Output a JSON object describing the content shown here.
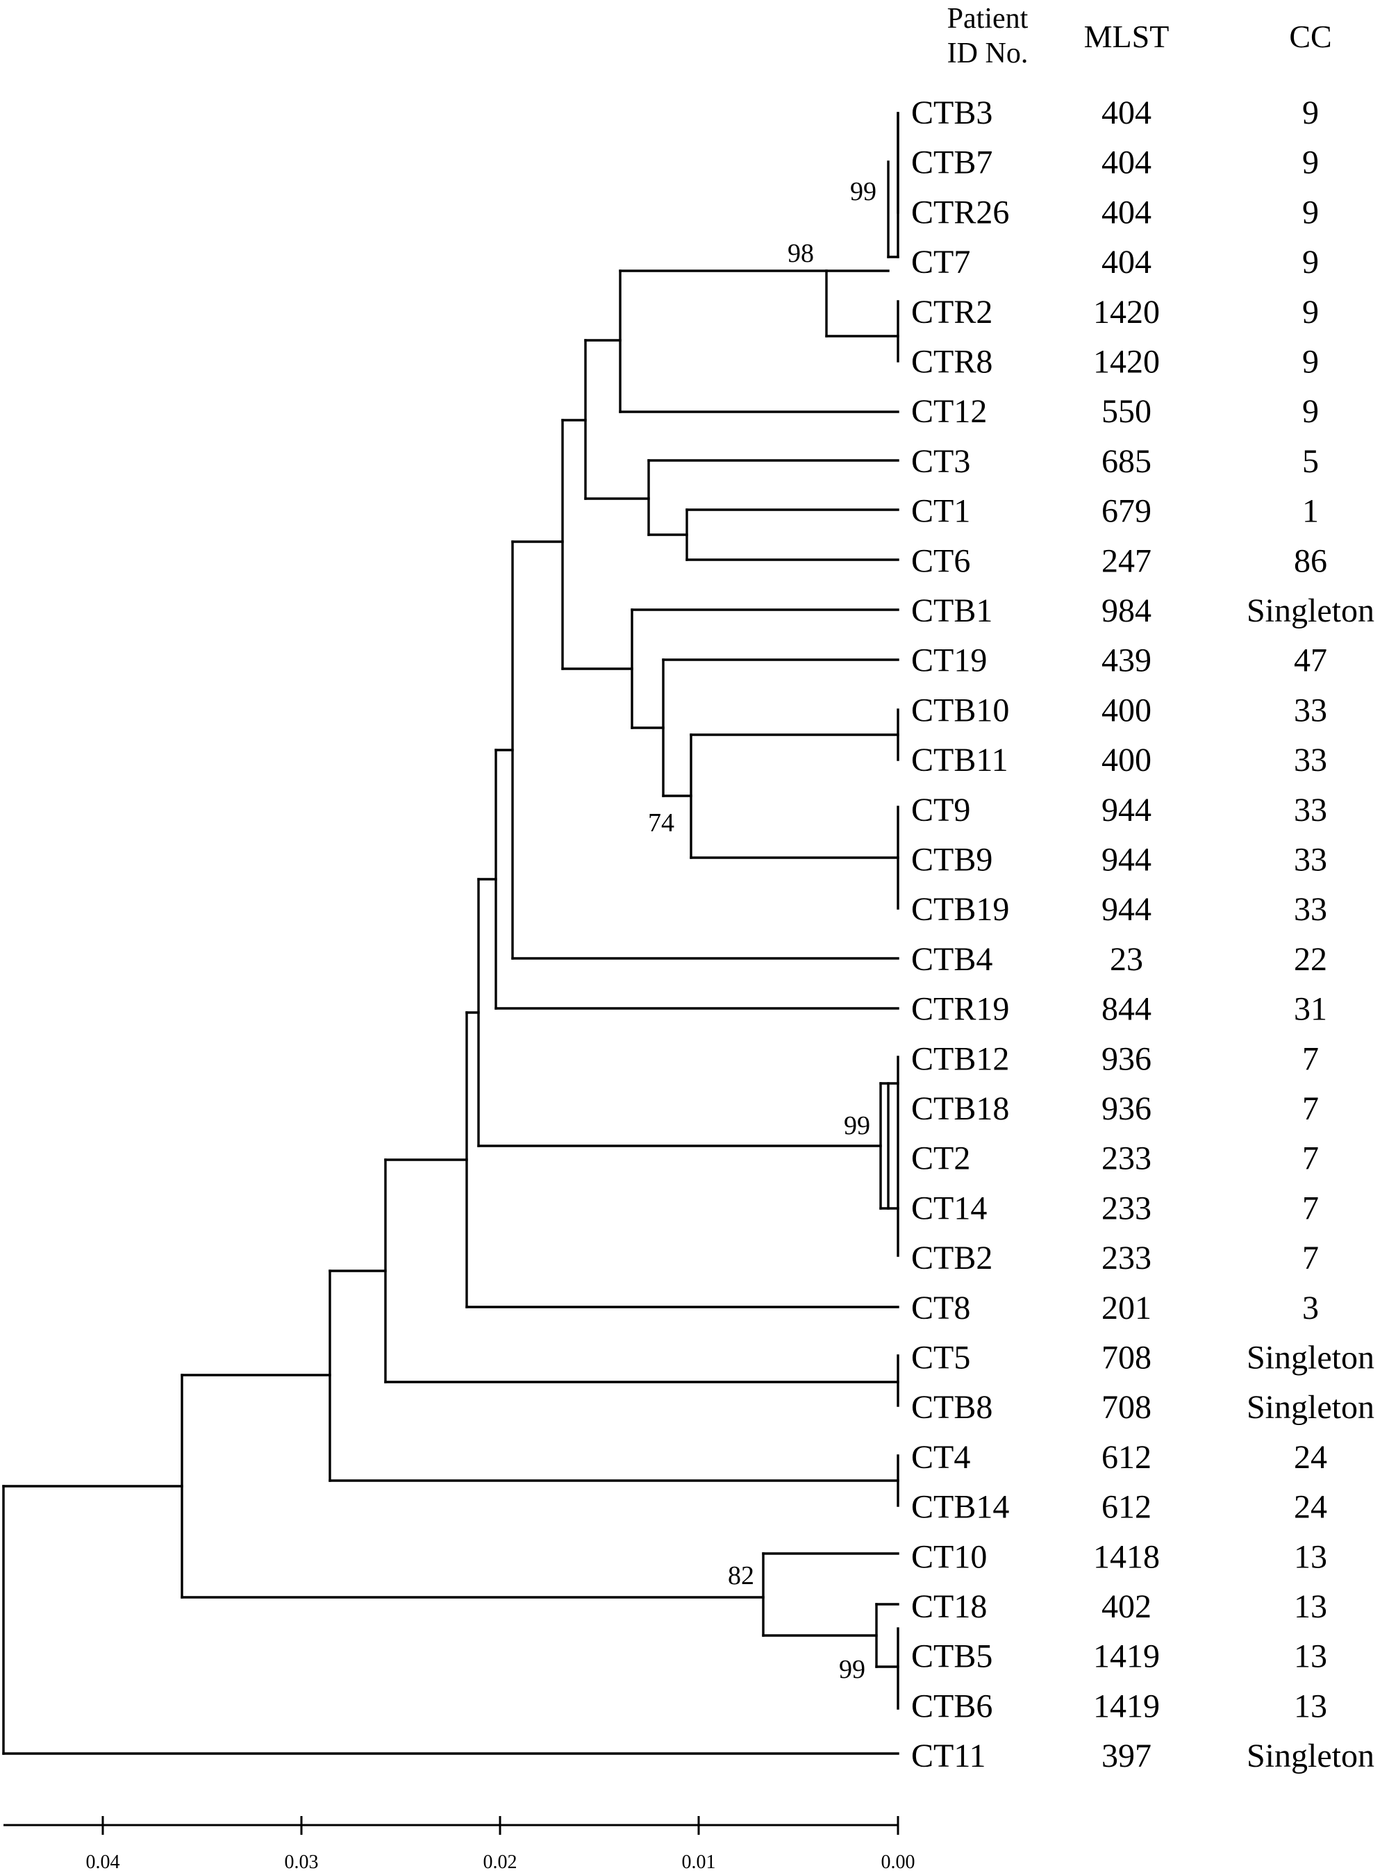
{
  "headers": {
    "patient_line1": "Patient",
    "patient_line2": "ID  No.",
    "mlst": "MLST",
    "cc": "CC"
  },
  "rows": [
    {
      "id": "CTB3",
      "mlst": "404",
      "cc": "9"
    },
    {
      "id": "CTB7",
      "mlst": "404",
      "cc": "9"
    },
    {
      "id": "CTR26",
      "mlst": "404",
      "cc": "9"
    },
    {
      "id": "CT7",
      "mlst": "404",
      "cc": "9"
    },
    {
      "id": "CTR2",
      "mlst": "1420",
      "cc": "9"
    },
    {
      "id": "CTR8",
      "mlst": "1420",
      "cc": "9"
    },
    {
      "id": "CT12",
      "mlst": "550",
      "cc": "9"
    },
    {
      "id": "CT3",
      "mlst": "685",
      "cc": "5"
    },
    {
      "id": "CT1",
      "mlst": "679",
      "cc": "1"
    },
    {
      "id": "CT6",
      "mlst": "247",
      "cc": "86"
    },
    {
      "id": "CTB1",
      "mlst": "984",
      "cc": "Singleton"
    },
    {
      "id": "CT19",
      "mlst": "439",
      "cc": "47"
    },
    {
      "id": "CTB10",
      "mlst": "400",
      "cc": "33"
    },
    {
      "id": "CTB11",
      "mlst": "400",
      "cc": "33"
    },
    {
      "id": "CT9",
      "mlst": "944",
      "cc": "33"
    },
    {
      "id": "CTB9",
      "mlst": "944",
      "cc": "33"
    },
    {
      "id": "CTB19",
      "mlst": "944",
      "cc": "33"
    },
    {
      "id": "CTB4",
      "mlst": "23",
      "cc": "22"
    },
    {
      "id": "CTR19",
      "mlst": "844",
      "cc": "31"
    },
    {
      "id": "CTB12",
      "mlst": "936",
      "cc": "7"
    },
    {
      "id": "CTB18",
      "mlst": "936",
      "cc": "7"
    },
    {
      "id": "CT2",
      "mlst": "233",
      "cc": "7"
    },
    {
      "id": "CT14",
      "mlst": "233",
      "cc": "7"
    },
    {
      "id": "CTB2",
      "mlst": "233",
      "cc": "7"
    },
    {
      "id": "CT8",
      "mlst": "201",
      "cc": "3"
    },
    {
      "id": "CT5",
      "mlst": "708",
      "cc": "Singleton"
    },
    {
      "id": "CTB8",
      "mlst": "708",
      "cc": "Singleton"
    },
    {
      "id": "CT4",
      "mlst": "612",
      "cc": "24"
    },
    {
      "id": "CTB14",
      "mlst": "612",
      "cc": "24"
    },
    {
      "id": "CT10",
      "mlst": "1418",
      "cc": "13"
    },
    {
      "id": "CT18",
      "mlst": "402",
      "cc": "13"
    },
    {
      "id": "CTB5",
      "mlst": "1419",
      "cc": "13"
    },
    {
      "id": "CTB6",
      "mlst": "1419",
      "cc": "13"
    },
    {
      "id": "CT11",
      "mlst": "397",
      "cc": "Singleton"
    }
  ],
  "bootstrap": [
    "99",
    "98",
    "74",
    "99",
    "82",
    "99"
  ],
  "scale_ticks": [
    "0.04",
    "0.03",
    "0.02",
    "0.01",
    "0.00"
  ]
}
